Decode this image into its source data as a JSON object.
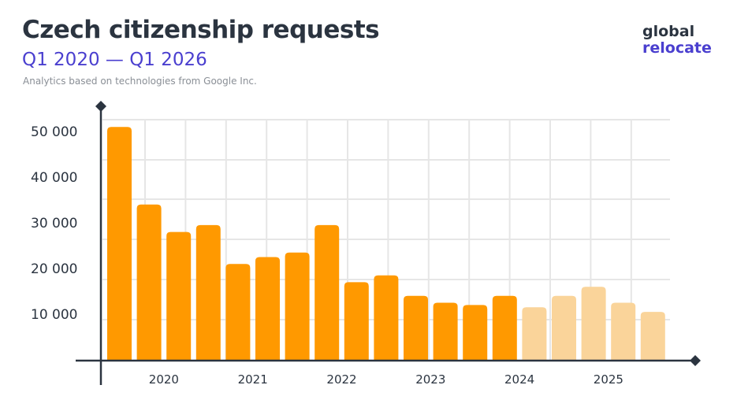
{
  "header": {
    "title": "Czech citizenship requests",
    "subtitle": "Q1 2020 — Q1 2026",
    "note": "Analytics based on technologies from Google Inc."
  },
  "logo": {
    "line1": "global",
    "line2": "relocate"
  },
  "colors": {
    "bar_actual": "#ff9900",
    "bar_forecast": "#fad49a",
    "grid": "#e6e6e6",
    "axis": "#2b3440",
    "title": "#2b3440",
    "accent": "#4a3fcf"
  },
  "chart_data": {
    "type": "bar",
    "title": "Czech citizenship requests",
    "subtitle": "Q1 2020 — Q1 2026",
    "xlabel": "",
    "ylabel": "",
    "ylim": [
      0,
      52000
    ],
    "yticks": [
      10000,
      20000,
      30000,
      40000,
      50000
    ],
    "ytick_labels": [
      "10 000",
      "20 000",
      "30 000",
      "40 000",
      "50 000"
    ],
    "xtick_labels": [
      "2020",
      "2021",
      "2022",
      "2023",
      "2024",
      "2025"
    ],
    "grid": true,
    "values": [
      51000,
      34000,
      28000,
      29500,
      21000,
      22500,
      23500,
      29500,
      17000,
      18500,
      14000,
      12500,
      12000,
      14000,
      11500,
      14000,
      16000,
      12500,
      10500
    ],
    "forecast": [
      false,
      false,
      false,
      false,
      false,
      false,
      false,
      false,
      false,
      false,
      false,
      false,
      false,
      false,
      true,
      true,
      true,
      true,
      true
    ]
  }
}
